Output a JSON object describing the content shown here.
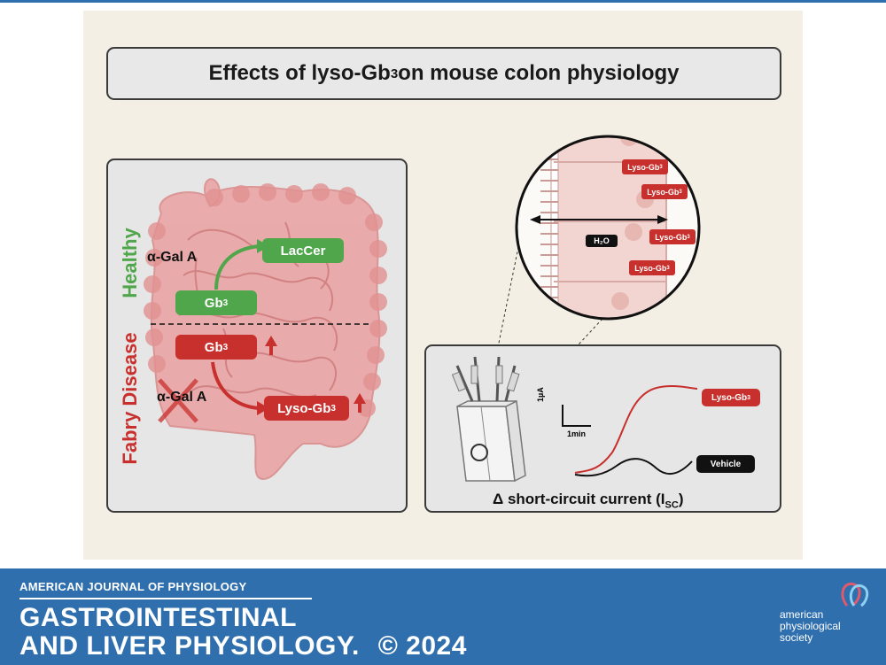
{
  "title": {
    "main": "Effects of lyso-Gb",
    "sub": "3",
    "rest": " on mouse colon physiology"
  },
  "left_panel": {
    "healthy_label": "Healthy",
    "disease_label": "Fabry Disease",
    "alpha_gal_healthy": "α-Gal A",
    "alpha_gal_disease": "α-Gal A",
    "laccer": "LacCer",
    "gb3_healthy": {
      "main": "Gb",
      "sub": "3"
    },
    "gb3_disease": {
      "main": "Gb",
      "sub": "3"
    },
    "lyso_gb3": {
      "main": "Lyso-Gb",
      "sub": "3"
    }
  },
  "zoom_circle": {
    "h2o": "H₂O",
    "lyso_labels": [
      {
        "main": "Lyso-Gb",
        "sub": "3"
      },
      {
        "main": "Lyso-Gb",
        "sub": "3"
      },
      {
        "main": "Lyso-Gb",
        "sub": "3"
      },
      {
        "main": "Lyso-Gb",
        "sub": "3"
      }
    ]
  },
  "right_panel": {
    "scale_y": "1µA",
    "scale_x": "1min",
    "lyso_label": {
      "main": "Lyso-Gb",
      "sub": "3"
    },
    "vehicle_label": "Vehicle",
    "isc_label": {
      "main": "Δ short-circuit current (I",
      "sub": "SC",
      "end": ")"
    }
  },
  "footer": {
    "journal_top": "AMERICAN JOURNAL OF PHYSIOLOGY",
    "journal_line1": "GASTROINTESTINAL",
    "journal_line2": "AND LIVER PHYSIOLOGY.",
    "copyright": "© 2024",
    "society_line1": "american",
    "society_line2": "physiological",
    "society_line3": "society"
  },
  "colors": {
    "healthy": "#4fa64b",
    "disease": "#c8302d",
    "footer": "#2f6fae",
    "panel": "#f4efe4"
  }
}
